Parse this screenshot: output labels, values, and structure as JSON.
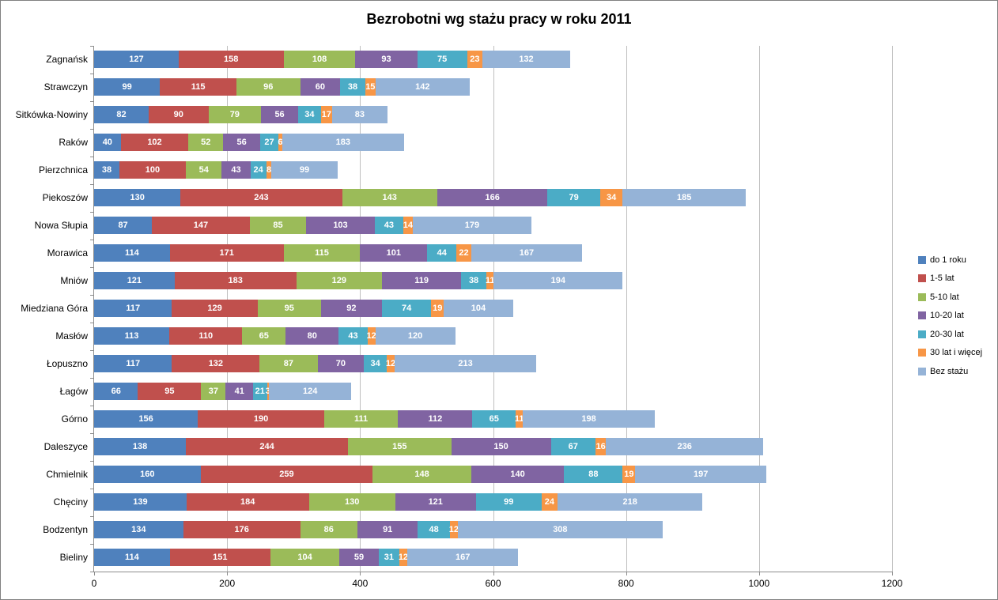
{
  "title": "Bezrobotni wg stażu pracy w roku 2011",
  "chart_data": {
    "type": "bar",
    "orientation": "horizontal-stacked",
    "title": "Bezrobotni wg stażu pracy w roku 2011",
    "xlabel": "",
    "ylabel": "",
    "xlim": [
      0,
      1200
    ],
    "x_ticks": [
      0,
      200,
      400,
      600,
      800,
      1000,
      1200
    ],
    "grid": "vertical",
    "legend_position": "right",
    "value_labels": "inside",
    "categories": [
      "Zagnańsk",
      "Strawczyn",
      "Sitkówka-Nowiny",
      "Raków",
      "Pierzchnica",
      "Piekoszów",
      "Nowa Słupia",
      "Morawica",
      "Mniów",
      "Miedziana Góra",
      "Masłów",
      "Łopuszno",
      "Łagów",
      "Górno",
      "Daleszyce",
      "Chmielnik",
      "Chęciny",
      "Bodzentyn",
      "Bieliny"
    ],
    "series": [
      {
        "name": "do 1 roku",
        "color": "#4F81BD",
        "values": [
          127,
          99,
          82,
          40,
          38,
          130,
          87,
          114,
          121,
          117,
          113,
          117,
          66,
          156,
          138,
          160,
          139,
          134,
          114
        ]
      },
      {
        "name": "1-5 lat",
        "color": "#C0504D",
        "values": [
          158,
          115,
          90,
          102,
          100,
          243,
          147,
          171,
          183,
          129,
          110,
          132,
          95,
          190,
          244,
          259,
          184,
          176,
          151
        ]
      },
      {
        "name": "5-10 lat",
        "color": "#9BBB59",
        "values": [
          108,
          96,
          79,
          52,
          54,
          143,
          85,
          115,
          129,
          95,
          65,
          87,
          37,
          111,
          155,
          148,
          130,
          86,
          104
        ]
      },
      {
        "name": "10-20 lat",
        "color": "#8064A2",
        "values": [
          93,
          60,
          56,
          56,
          43,
          166,
          103,
          101,
          119,
          92,
          80,
          70,
          41,
          112,
          150,
          140,
          121,
          91,
          59
        ]
      },
      {
        "name": "20-30 lat",
        "color": "#4BACC6",
        "values": [
          75,
          38,
          34,
          27,
          24,
          79,
          43,
          44,
          38,
          74,
          43,
          34,
          21,
          65,
          67,
          88,
          99,
          48,
          31
        ]
      },
      {
        "name": "30 lat i więcej",
        "color": "#F79646",
        "values": [
          23,
          15,
          17,
          6,
          8,
          34,
          14,
          22,
          11,
          19,
          12,
          12,
          3,
          11,
          16,
          19,
          24,
          12,
          12
        ]
      },
      {
        "name": "Bez stażu",
        "color": "#95B3D7",
        "values": [
          132,
          142,
          83,
          183,
          99,
          185,
          179,
          167,
          194,
          104,
          120,
          213,
          124,
          198,
          236,
          197,
          218,
          308,
          167
        ]
      }
    ],
    "style_colors": {
      "background": "#FFFFFF",
      "border": "#808080",
      "gridline": "#BFBFBF",
      "axis": "#8C8C8C",
      "value_label": "#FFFFFF",
      "tick_label": "#000000"
    }
  }
}
